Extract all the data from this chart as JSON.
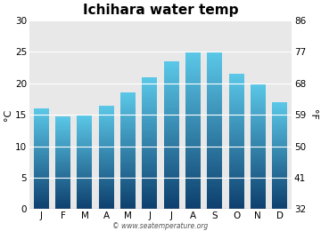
{
  "title": "Ichihara water temp",
  "months": [
    "J",
    "F",
    "M",
    "A",
    "M",
    "J",
    "J",
    "A",
    "S",
    "O",
    "N",
    "D"
  ],
  "values_c": [
    16.0,
    14.8,
    14.9,
    16.5,
    18.6,
    21.0,
    23.5,
    25.0,
    25.0,
    21.5,
    20.0,
    17.0
  ],
  "ylabel_left": "°C",
  "ylabel_right": "°F",
  "yticks_c": [
    0,
    5,
    10,
    15,
    20,
    25,
    30
  ],
  "yticks_f": [
    32,
    41,
    50,
    59,
    68,
    77,
    86
  ],
  "ylim": [
    0,
    30
  ],
  "bar_color_top": "#5bc8e8",
  "bar_color_bottom": "#0d3f6e",
  "bg_color": "#ffffff",
  "plot_bg_color": "#e8e8e8",
  "watermark": "© www.seatemperature.org",
  "title_fontsize": 11,
  "tick_fontsize": 7.5,
  "label_fontsize": 8
}
